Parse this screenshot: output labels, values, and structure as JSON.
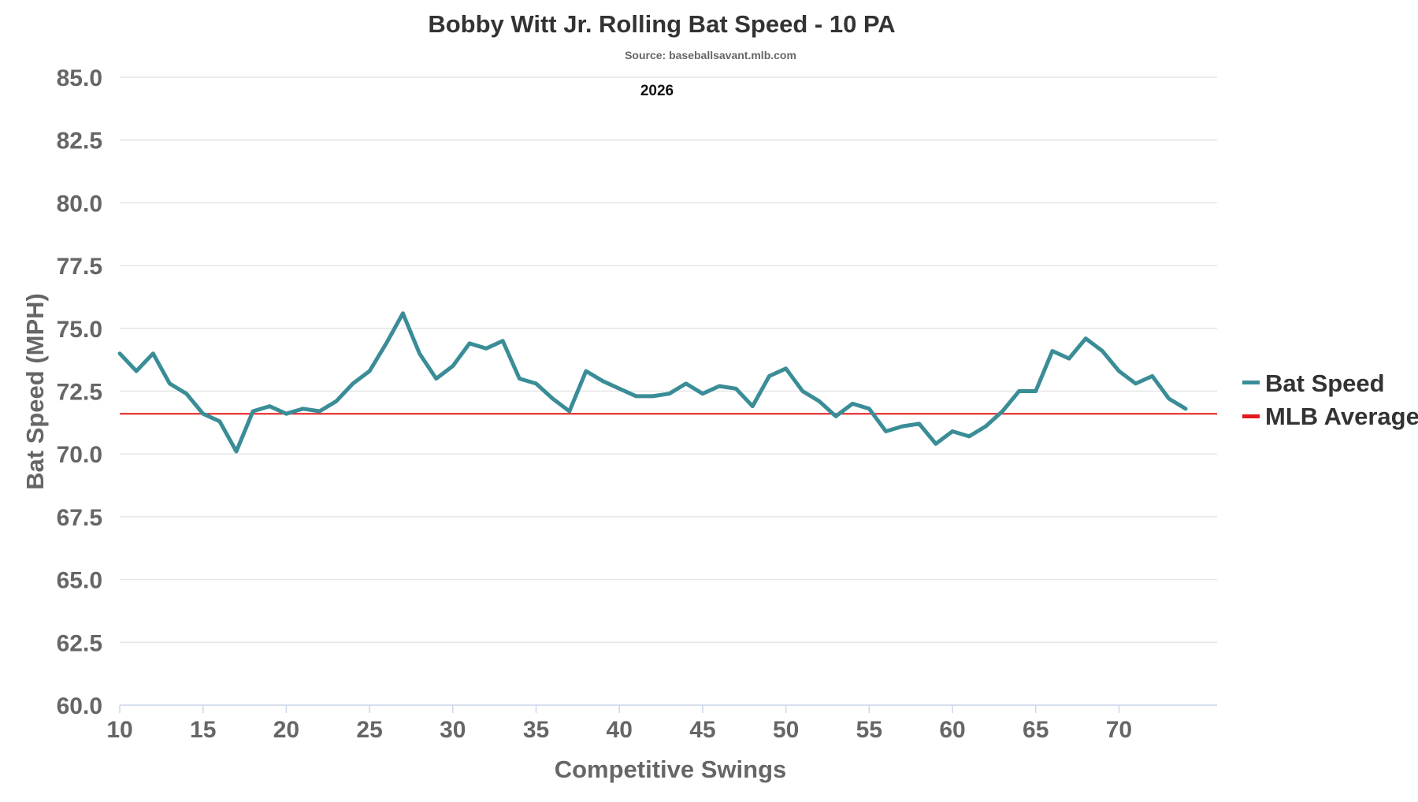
{
  "chart_data": {
    "type": "line",
    "title": "Bobby Witt Jr. Rolling Bat Speed - 10 PA",
    "subtitle": "Source: baseballsavant.mlb.com",
    "annotation": "2026",
    "xlabel": "Competitive Swings",
    "ylabel": "Bat Speed (MPH)",
    "xlim": [
      10,
      74
    ],
    "ylim": [
      60,
      85
    ],
    "xticks": [
      10,
      15,
      20,
      25,
      30,
      35,
      40,
      45,
      50,
      55,
      60,
      65,
      70
    ],
    "yticks": [
      "60.0",
      "62.5",
      "65.0",
      "67.5",
      "70.0",
      "72.5",
      "75.0",
      "77.5",
      "80.0",
      "82.5",
      "85.0"
    ],
    "grid": true,
    "legend_position": "right",
    "colors": {
      "bat_speed": "#3a8d96",
      "mlb_average": "#e31a1c",
      "grid": "#e6e6e6",
      "axis": "#ccd6eb"
    },
    "series": [
      {
        "name": "Bat Speed",
        "x": [
          10,
          11,
          12,
          13,
          14,
          15,
          16,
          17,
          18,
          19,
          20,
          21,
          22,
          23,
          24,
          25,
          26,
          27,
          28,
          29,
          30,
          31,
          32,
          33,
          34,
          35,
          36,
          37,
          38,
          39,
          40,
          41,
          42,
          43,
          44,
          45,
          46,
          47,
          48,
          49,
          50,
          51,
          52,
          53,
          54,
          55,
          56,
          57,
          58,
          59,
          60,
          61,
          62,
          63,
          64,
          65,
          66,
          67,
          68,
          69,
          70,
          71,
          72,
          73,
          74
        ],
        "values": [
          74.0,
          73.3,
          74.0,
          72.8,
          72.4,
          71.6,
          71.3,
          70.1,
          71.7,
          71.9,
          71.6,
          71.8,
          71.7,
          72.1,
          72.8,
          73.3,
          74.4,
          75.6,
          74.0,
          73.0,
          73.5,
          74.4,
          74.2,
          74.5,
          73.0,
          72.8,
          72.2,
          71.7,
          73.3,
          72.9,
          72.6,
          72.3,
          72.3,
          72.4,
          72.8,
          72.4,
          72.7,
          72.6,
          71.9,
          73.1,
          73.4,
          72.5,
          72.1,
          71.5,
          72.0,
          71.8,
          70.9,
          71.1,
          71.2,
          70.4,
          70.9,
          70.7,
          71.1,
          71.7,
          72.5,
          72.5,
          74.1,
          73.8,
          74.6,
          74.1,
          73.3,
          72.8,
          73.1,
          72.2,
          71.8
        ]
      },
      {
        "name": "MLB Average",
        "values": [
          71.6
        ]
      }
    ]
  }
}
